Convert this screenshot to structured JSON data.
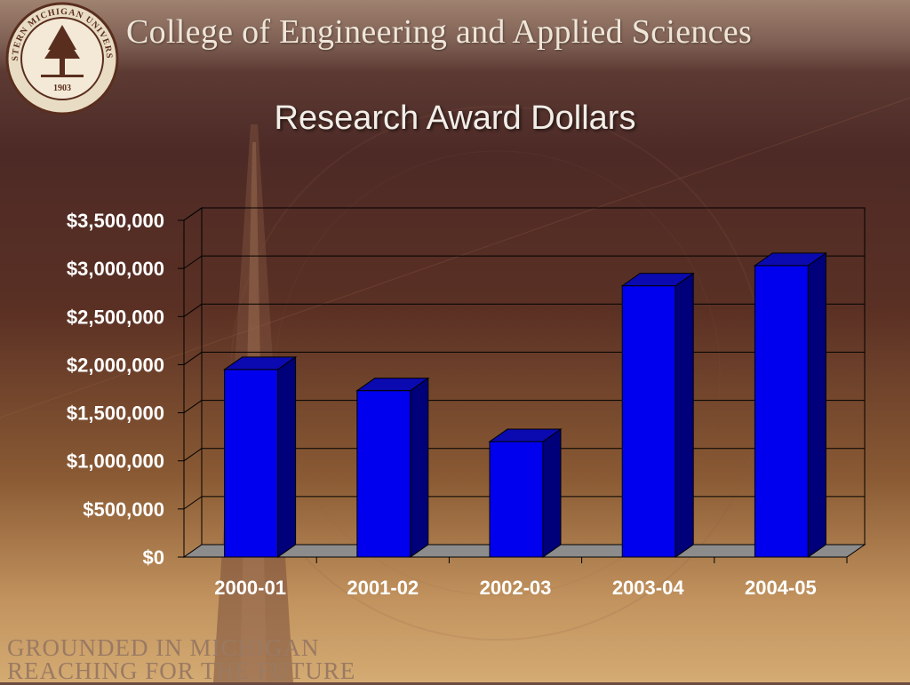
{
  "header": {
    "title": "College of Engineering and Applied Sciences",
    "seal_text": "WESTERN MICHIGAN UNIVERSITY",
    "seal_year": "1903"
  },
  "slide": {
    "title": "Research Award Dollars"
  },
  "footer": {
    "line1": "GROUNDED IN MICHIGAN",
    "line2": "REACHING FOR THE FUTURE"
  },
  "chart_data": {
    "type": "bar",
    "title": "Research Award Dollars",
    "categories": [
      "2000-01",
      "2001-02",
      "2002-03",
      "2003-04",
      "2004-05"
    ],
    "values": [
      1950000,
      1730000,
      1200000,
      2820000,
      3030000
    ],
    "ylim": [
      0,
      3500000
    ],
    "yticks": [
      0,
      500000,
      1000000,
      1500000,
      2000000,
      2500000,
      3000000,
      3500000
    ],
    "ytick_labels": [
      "$0",
      "$500,000",
      "$1,000,000",
      "$1,500,000",
      "$2,000,000",
      "$2,500,000",
      "$3,000,000",
      "$3,500,000"
    ],
    "xlabel": "",
    "ylabel": "",
    "grid": true,
    "bar_color": "#0000ee",
    "bar_side_color": "#00007a",
    "bar_top_color": "#0a0ab0",
    "floor_color": "#8c8c8c"
  }
}
